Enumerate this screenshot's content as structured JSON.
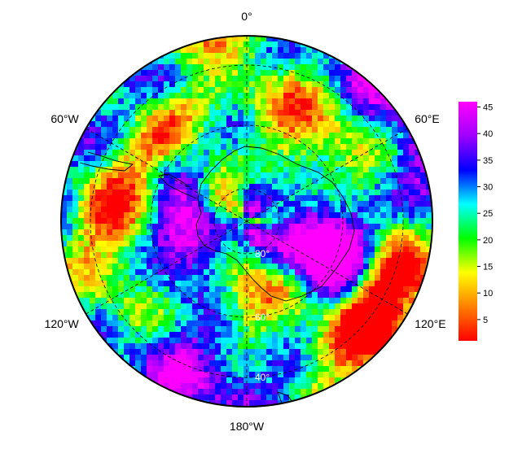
{
  "chart_data": {
    "type": "heatmap",
    "projection": "south-polar-stereographic",
    "colormap": [
      "#ff0000",
      "#ff8000",
      "#ffff00",
      "#00ff00",
      "#00ffff",
      "#0000ff",
      "#a000ff",
      "#ff00ff"
    ],
    "value_range": [
      1,
      46
    ],
    "colorbar_ticks": [
      5,
      10,
      15,
      20,
      25,
      30,
      35,
      40,
      45
    ],
    "longitude_labels": [
      {
        "text": "0°",
        "lon": 0
      },
      {
        "text": "60°E",
        "lon": 60
      },
      {
        "text": "120°E",
        "lon": 120
      },
      {
        "text": "180°W",
        "lon": 180
      },
      {
        "text": "120°W",
        "lon": -120
      },
      {
        "text": "60°W",
        "lon": -60
      }
    ],
    "latitude_labels": [
      {
        "text": "80°",
        "lat": -80
      },
      {
        "text": "60°",
        "lat": -60
      },
      {
        "text": "40°",
        "lat": -40
      }
    ],
    "meridians": [
      -120,
      -60,
      0,
      60,
      120,
      180
    ],
    "parallels": [
      -80,
      -60,
      -40
    ],
    "grid": true,
    "colorbar_position": "right"
  }
}
